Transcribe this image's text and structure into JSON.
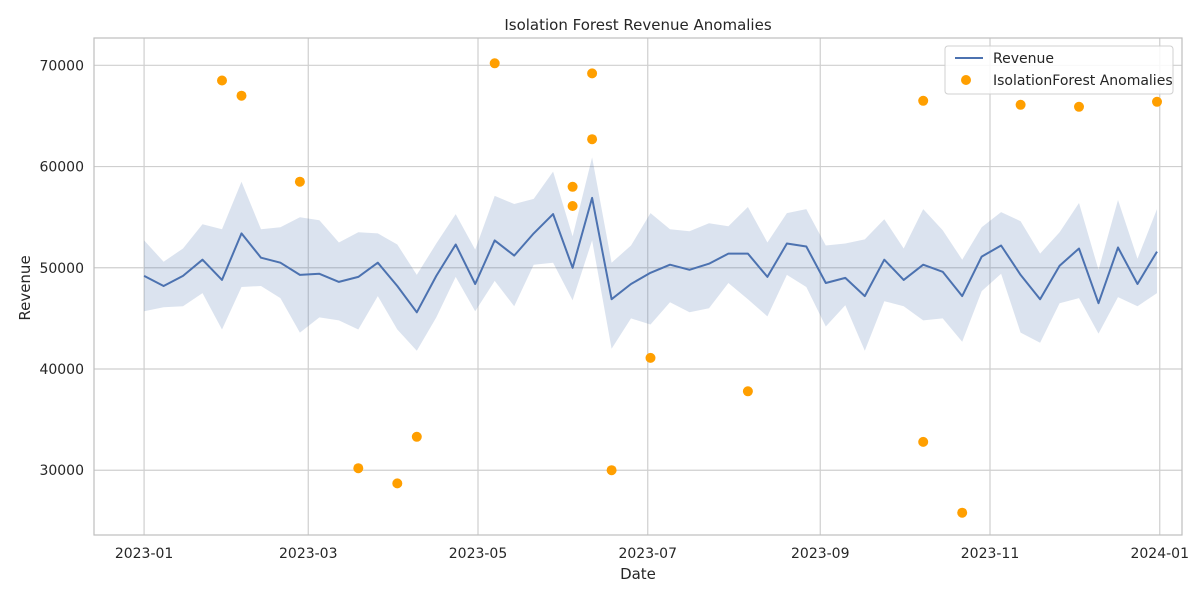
{
  "chart_data": {
    "type": "line",
    "title": "Isolation Forest Revenue Anomalies",
    "xlabel": "Date",
    "ylabel": "Revenue",
    "xlim": [
      "2022-12-14",
      "2024-01-09"
    ],
    "ylim": [
      23600,
      72700
    ],
    "x_ticks": [
      "2023-01",
      "2023-03",
      "2023-05",
      "2023-07",
      "2023-09",
      "2023-11",
      "2024-01"
    ],
    "y_ticks": [
      30000,
      40000,
      50000,
      60000,
      70000
    ],
    "grid": true,
    "legend_position": "top-right",
    "colors": {
      "line": "#4c72b0",
      "band": "#4c72b0",
      "anomaly": "#ff9f00",
      "grid": "#cfcfcf",
      "axes": "#bfbfbf"
    },
    "series": [
      {
        "name": "Revenue",
        "kind": "line",
        "x": [
          "2023-01-01",
          "2023-01-08",
          "2023-01-15",
          "2023-01-22",
          "2023-01-29",
          "2023-02-05",
          "2023-02-12",
          "2023-02-19",
          "2023-02-26",
          "2023-03-05",
          "2023-03-12",
          "2023-03-19",
          "2023-03-26",
          "2023-04-02",
          "2023-04-09",
          "2023-04-16",
          "2023-04-23",
          "2023-04-30",
          "2023-05-07",
          "2023-05-14",
          "2023-05-21",
          "2023-05-28",
          "2023-06-04",
          "2023-06-11",
          "2023-06-18",
          "2023-06-25",
          "2023-07-02",
          "2023-07-09",
          "2023-07-16",
          "2023-07-23",
          "2023-07-30",
          "2023-08-06",
          "2023-08-13",
          "2023-08-20",
          "2023-08-27",
          "2023-09-03",
          "2023-09-10",
          "2023-09-17",
          "2023-09-24",
          "2023-10-01",
          "2023-10-08",
          "2023-10-15",
          "2023-10-22",
          "2023-10-29",
          "2023-11-05",
          "2023-11-12",
          "2023-11-19",
          "2023-11-26",
          "2023-12-03",
          "2023-12-10",
          "2023-12-17",
          "2023-12-24",
          "2023-12-31"
        ],
        "values": [
          49200,
          48200,
          49200,
          50800,
          48800,
          53400,
          51000,
          50500,
          49300,
          49400,
          48600,
          49100,
          50500,
          48200,
          45600,
          49200,
          52300,
          48400,
          52700,
          51200,
          53400,
          55300,
          50000,
          56900,
          46900,
          48400,
          49500,
          50300,
          49800,
          50400,
          51400,
          51400,
          49100,
          52400,
          52100,
          48500,
          49000,
          47200,
          50800,
          48800,
          50300,
          49600,
          47200,
          51100,
          52200,
          49300,
          46900,
          50200,
          51900,
          46500,
          52000,
          48400,
          51600
        ],
        "band_lower": [
          45700,
          46100,
          46200,
          47500,
          43900,
          48100,
          48200,
          47000,
          43600,
          45100,
          44800,
          43900,
          47200,
          43900,
          41800,
          45100,
          49100,
          45700,
          48700,
          46200,
          50300,
          50500,
          46800,
          52700,
          42000,
          45000,
          44400,
          46600,
          45600,
          46000,
          48500,
          46900,
          45200,
          49300,
          48100,
          44200,
          46300,
          41800,
          46700,
          46200,
          44800,
          45000,
          42700,
          47700,
          49400,
          43600,
          42600,
          46500,
          47000,
          43500,
          47100,
          46200,
          47500
        ],
        "band_upper": [
          52700,
          50600,
          51900,
          54300,
          53800,
          58500,
          53800,
          54000,
          55000,
          54700,
          52500,
          53500,
          53400,
          52300,
          49300,
          52400,
          55300,
          51800,
          57100,
          56300,
          56800,
          59500,
          53100,
          60900,
          50500,
          52200,
          55400,
          53800,
          53600,
          54400,
          54100,
          56000,
          52500,
          55400,
          55800,
          52200,
          52400,
          52800,
          54800,
          51900,
          55800,
          53700,
          50800,
          54000,
          55500,
          54600,
          51400,
          53500,
          56400,
          49800,
          56700,
          50900,
          55800
        ]
      },
      {
        "name": "IsolationForest Anomalies",
        "kind": "scatter",
        "x": [
          "2023-01-29",
          "2023-02-05",
          "2023-02-26",
          "2023-03-19",
          "2023-04-02",
          "2023-04-09",
          "2023-05-07",
          "2023-06-04",
          "2023-06-04",
          "2023-06-11",
          "2023-06-11",
          "2023-06-18",
          "2023-07-02",
          "2023-08-06",
          "2023-10-08",
          "2023-10-08",
          "2023-10-22",
          "2023-11-12",
          "2023-12-03",
          "2023-12-31"
        ],
        "values": [
          68500,
          67000,
          58500,
          30200,
          28700,
          33300,
          70200,
          58000,
          56100,
          69200,
          62700,
          30000,
          41100,
          37800,
          66500,
          32800,
          25800,
          66100,
          65900,
          66400
        ]
      }
    ]
  }
}
